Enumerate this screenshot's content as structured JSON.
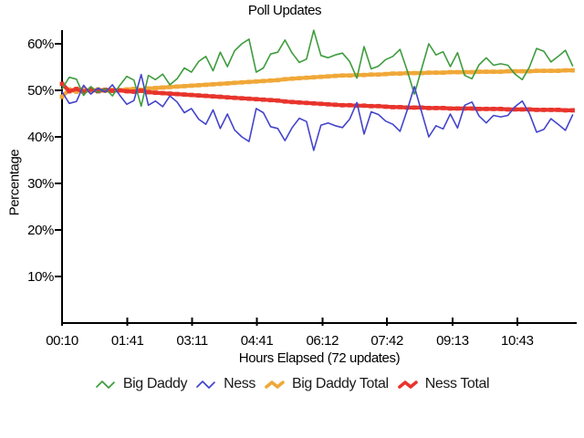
{
  "chart_data": {
    "type": "line",
    "title": "Poll Updates",
    "xlabel": "Hours Elapsed (72 updates)",
    "ylabel": "Percentage",
    "grid": false,
    "legend_position": "bottom",
    "n_points": 72,
    "x_start_minutes": 10,
    "x_interval_minutes": 10,
    "xlim_minutes": [
      10,
      725
    ],
    "ylim": [
      0,
      63
    ],
    "y_ticks": [
      10,
      20,
      30,
      40,
      50,
      60
    ],
    "y_tick_labels": [
      "10%",
      "20%",
      "30%",
      "40%",
      "50%",
      "60%"
    ],
    "x_tick_minutes": [
      10,
      101,
      191,
      281,
      372,
      462,
      553,
      643
    ],
    "x_tick_labels": [
      "00:10",
      "01:41",
      "03:11",
      "04:41",
      "06:12",
      "07:42",
      "09:13",
      "10:43"
    ],
    "series": [
      {
        "name": "Big Daddy",
        "color": "#3e9c3e",
        "style": "thin",
        "values": [
          50.3,
          52.8,
          52.4,
          48.9,
          50.8,
          49.5,
          50.4,
          48.8,
          51.0,
          53.0,
          52.2,
          46.6,
          53.2,
          52.3,
          53.5,
          51.2,
          52.5,
          54.8,
          53.9,
          56.2,
          57.3,
          54.2,
          58.2,
          55.1,
          58.5,
          60.0,
          61.0,
          53.9,
          54.8,
          57.8,
          58.2,
          60.8,
          58.0,
          56.0,
          56.7,
          62.9,
          57.5,
          57.0,
          57.6,
          58.0,
          56.2,
          52.6,
          59.4,
          54.6,
          55.2,
          56.6,
          57.3,
          58.8,
          54.3,
          49.2,
          54.6,
          60.0,
          57.6,
          58.3,
          55.1,
          58.1,
          53.2,
          52.5,
          55.5,
          57.0,
          55.4,
          55.7,
          55.4,
          53.5,
          52.3,
          55.0,
          59.0,
          58.4,
          56.1,
          57.3,
          58.6,
          55.3
        ]
      },
      {
        "name": "Ness",
        "color": "#4444cc",
        "style": "thin",
        "values": [
          49.7,
          47.2,
          47.6,
          51.1,
          49.2,
          50.5,
          49.6,
          51.2,
          49.0,
          47.0,
          47.8,
          53.4,
          46.8,
          47.7,
          46.5,
          48.8,
          47.5,
          45.2,
          46.1,
          43.8,
          42.7,
          45.8,
          41.8,
          44.9,
          41.5,
          40.0,
          39.0,
          46.1,
          45.2,
          42.2,
          41.8,
          39.2,
          42.0,
          44.0,
          43.3,
          37.1,
          42.5,
          43.0,
          42.4,
          42.0,
          43.8,
          47.4,
          40.6,
          45.4,
          44.8,
          43.4,
          42.7,
          41.2,
          45.7,
          50.8,
          45.4,
          40.0,
          42.4,
          41.7,
          44.9,
          41.9,
          46.8,
          47.5,
          44.5,
          43.0,
          44.6,
          44.3,
          44.6,
          46.5,
          47.7,
          45.0,
          41.0,
          41.6,
          43.9,
          42.7,
          41.4,
          44.7
        ]
      },
      {
        "name": "Big Daddy Total",
        "color": "#f0a838",
        "style": "thick",
        "values": [
          48.6,
          50.2,
          49.7,
          50.3,
          49.8,
          50.2,
          49.9,
          50.1,
          50.0,
          50.2,
          50.3,
          50.1,
          50.4,
          50.5,
          50.6,
          50.7,
          50.8,
          50.9,
          51.0,
          51.1,
          51.2,
          51.3,
          51.4,
          51.5,
          51.6,
          51.7,
          51.8,
          51.9,
          52.0,
          52.1,
          52.2,
          52.4,
          52.5,
          52.6,
          52.7,
          52.8,
          52.9,
          53.0,
          53.1,
          53.2,
          53.2,
          53.3,
          53.3,
          53.4,
          53.4,
          53.5,
          53.6,
          53.6,
          53.7,
          53.7,
          53.7,
          53.8,
          53.8,
          53.8,
          53.9,
          53.9,
          53.9,
          53.9,
          54.0,
          54.0,
          54.0,
          54.0,
          54.1,
          54.1,
          54.1,
          54.1,
          54.2,
          54.2,
          54.2,
          54.2,
          54.3,
          54.3
        ]
      },
      {
        "name": "Ness Total",
        "color": "#e8342c",
        "style": "thick",
        "values": [
          51.4,
          49.8,
          50.3,
          49.7,
          50.2,
          49.8,
          50.1,
          49.9,
          50.0,
          49.8,
          49.7,
          49.9,
          49.6,
          49.5,
          49.4,
          49.3,
          49.2,
          49.1,
          49.0,
          48.9,
          48.8,
          48.7,
          48.6,
          48.5,
          48.4,
          48.3,
          48.2,
          48.1,
          48.0,
          47.9,
          47.8,
          47.6,
          47.5,
          47.4,
          47.3,
          47.2,
          47.1,
          47.0,
          46.9,
          46.8,
          46.8,
          46.7,
          46.7,
          46.6,
          46.6,
          46.5,
          46.4,
          46.4,
          46.3,
          46.3,
          46.3,
          46.2,
          46.2,
          46.2,
          46.1,
          46.1,
          46.1,
          46.1,
          46.0,
          46.0,
          46.0,
          46.0,
          45.9,
          45.9,
          45.9,
          45.9,
          45.8,
          45.8,
          45.8,
          45.8,
          45.7,
          45.7
        ]
      }
    ]
  }
}
